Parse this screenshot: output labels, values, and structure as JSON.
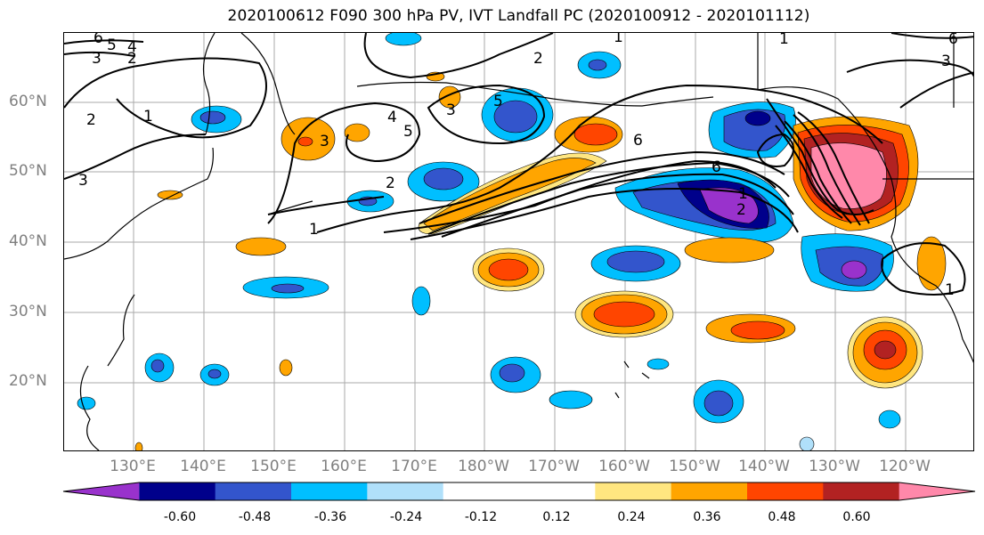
{
  "title": "2020100612 F090 300 hPa PV, IVT Landfall PC (2020100912 - 2020101112)",
  "map": {
    "lat_labels": [
      "60°N",
      "50°N",
      "40°N",
      "30°N",
      "20°N"
    ],
    "lon_labels": [
      "130°E",
      "140°E",
      "150°E",
      "160°E",
      "170°E",
      "180°W",
      "170°W",
      "160°W",
      "150°W",
      "140°W",
      "130°W",
      "120°W"
    ],
    "contour_labels": [
      "6",
      "5",
      "4",
      "3",
      "2",
      "2",
      "3",
      "1",
      "1",
      "4",
      "5",
      "3",
      "2",
      "2",
      "1",
      "6",
      "6",
      "1",
      "2",
      "1",
      "5",
      "3",
      "1",
      "6",
      "3"
    ],
    "projection_style": "coastlines with lat/lon gridlines"
  },
  "colorbar": {
    "colors": [
      "#9932cc",
      "#00008b",
      "#3355cc",
      "#00bfff",
      "#b0e0fa",
      "#ffffff",
      "#ffffff",
      "#ffe680",
      "#ffa500",
      "#ff4500",
      "#b22222",
      "#ff88aa"
    ],
    "tick_labels": [
      "-0.60",
      "-0.48",
      "-0.36",
      "-0.24",
      "-0.12",
      "0.12",
      "0.24",
      "0.36",
      "0.48",
      "0.60"
    ],
    "extend": "both"
  }
}
